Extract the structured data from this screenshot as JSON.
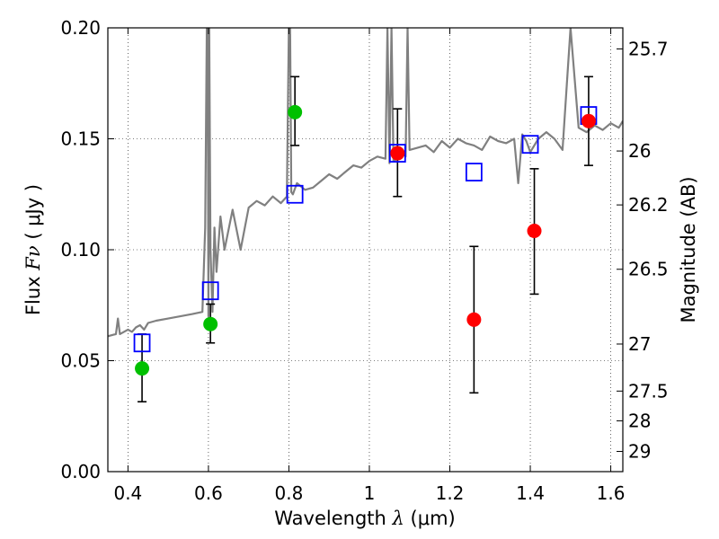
{
  "chart_data": {
    "type": "scatter",
    "xlabel": "Wavelength",
    "xlabel_symbol": "λ",
    "xlabel_unit": "(μm)",
    "ylabel": "Flux",
    "ylabel_symbol": "Fν",
    "ylabel_unit": "( μJy )",
    "y2label": "Magnitude (AB)",
    "xlim": [
      0.35,
      1.63
    ],
    "ylim": [
      0.0,
      0.2
    ],
    "grid": true,
    "x_ticks": [
      0.4,
      0.6,
      0.8,
      1.0,
      1.2,
      1.4,
      1.6
    ],
    "x_tick_labels": [
      "0.4",
      "0.6",
      "0.8",
      "1",
      "1.2",
      "1.4",
      "1.6"
    ],
    "y_ticks": [
      0.0,
      0.05,
      0.1,
      0.15,
      0.2
    ],
    "y_tick_labels": [
      "0.00",
      "0.05",
      "0.10",
      "0.15",
      "0.20"
    ],
    "mag_ticks": [
      {
        "label": "25.7",
        "flux": 0.1905
      },
      {
        "label": "26",
        "flux": 0.1445
      },
      {
        "label": "26.2",
        "flux": 0.1202
      },
      {
        "label": "26.5",
        "flux": 0.0912
      },
      {
        "label": "27",
        "flux": 0.0575
      },
      {
        "label": "27.5",
        "flux": 0.0363
      },
      {
        "label": "28",
        "flux": 0.0229
      },
      {
        "label": "29",
        "flux": 0.0091
      }
    ],
    "colors": {
      "spectrum": "#808080",
      "green_points": "#00c000",
      "red_points": "#ff0000",
      "model_squares": "#0000ff",
      "errorbars": "#000000"
    },
    "series": [
      {
        "name": "model spectrum",
        "kind": "line",
        "x": [
          0.35,
          0.37,
          0.375,
          0.38,
          0.39,
          0.4,
          0.41,
          0.42,
          0.43,
          0.44,
          0.45,
          0.47,
          0.5,
          0.53,
          0.56,
          0.585,
          0.592,
          0.596,
          0.598,
          0.6,
          0.602,
          0.605,
          0.61,
          0.615,
          0.62,
          0.63,
          0.64,
          0.66,
          0.68,
          0.7,
          0.72,
          0.74,
          0.76,
          0.78,
          0.795,
          0.8,
          0.803,
          0.806,
          0.81,
          0.82,
          0.84,
          0.86,
          0.88,
          0.9,
          0.92,
          0.94,
          0.96,
          0.98,
          1.0,
          1.02,
          1.04,
          1.045,
          1.05,
          1.055,
          1.06,
          1.07,
          1.08,
          1.09,
          1.095,
          1.1,
          1.12,
          1.14,
          1.16,
          1.18,
          1.2,
          1.22,
          1.24,
          1.26,
          1.28,
          1.3,
          1.32,
          1.34,
          1.36,
          1.37,
          1.38,
          1.39,
          1.4,
          1.42,
          1.44,
          1.46,
          1.48,
          1.5,
          1.52,
          1.54,
          1.56,
          1.58,
          1.6,
          1.62,
          1.63
        ],
        "y": [
          0.061,
          0.062,
          0.069,
          0.062,
          0.063,
          0.064,
          0.063,
          0.065,
          0.066,
          0.064,
          0.067,
          0.068,
          0.069,
          0.07,
          0.071,
          0.072,
          0.11,
          0.2,
          0.2,
          0.07,
          0.2,
          0.1,
          0.072,
          0.11,
          0.09,
          0.115,
          0.1,
          0.118,
          0.1,
          0.119,
          0.122,
          0.12,
          0.124,
          0.121,
          0.124,
          0.2,
          0.2,
          0.126,
          0.125,
          0.13,
          0.127,
          0.128,
          0.131,
          0.134,
          0.132,
          0.135,
          0.138,
          0.137,
          0.14,
          0.142,
          0.141,
          0.2,
          0.139,
          0.2,
          0.14,
          0.141,
          0.144,
          0.142,
          0.2,
          0.145,
          0.146,
          0.147,
          0.144,
          0.149,
          0.146,
          0.15,
          0.148,
          0.147,
          0.145,
          0.151,
          0.149,
          0.148,
          0.15,
          0.13,
          0.152,
          0.149,
          0.144,
          0.15,
          0.153,
          0.15,
          0.145,
          0.2,
          0.155,
          0.153,
          0.156,
          0.154,
          0.157,
          0.155,
          0.158
        ]
      },
      {
        "name": "green points",
        "kind": "points",
        "x": [
          0.435,
          0.605,
          0.815
        ],
        "y": [
          0.0465,
          0.0665,
          0.162
        ],
        "yerr_low": [
          0.0315,
          0.058,
          0.147
        ],
        "yerr_high": [
          0.062,
          0.0755,
          0.178
        ]
      },
      {
        "name": "red points",
        "kind": "points",
        "x": [
          1.07,
          1.26,
          1.41,
          1.545
        ],
        "y": [
          0.1435,
          0.0685,
          0.1085,
          0.158
        ],
        "yerr_low": [
          0.124,
          0.0355,
          0.08,
          0.138
        ],
        "yerr_high": [
          0.1635,
          0.1015,
          0.1365,
          0.178
        ]
      },
      {
        "name": "model squares",
        "kind": "squares",
        "x": [
          0.435,
          0.605,
          0.815,
          1.07,
          1.26,
          1.4,
          1.545
        ],
        "y": [
          0.058,
          0.0815,
          0.125,
          0.1435,
          0.135,
          0.1475,
          0.1605
        ]
      }
    ]
  }
}
